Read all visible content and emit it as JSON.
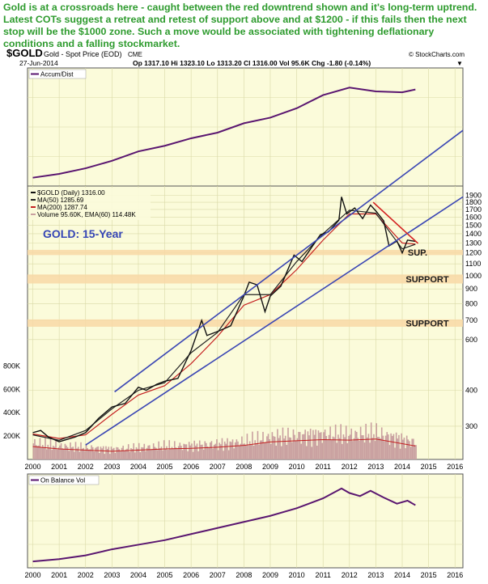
{
  "commentary": "Gold is at a crossroads here - caught between the red downtrend shown and it's long-term uptrend. Latest COTs suggest a retreat and retest of support above and at $1200 - if this fails then the next stop will be the $1000 zone. Such a move would be associated with tightening deflationary conditions and a falling stockmarket.",
  "header": {
    "symbol": "$GOLD",
    "description": "Gold - Spot Price (EOD)",
    "exchange": "CME",
    "copyright": "© StockCharts.com",
    "date": "27-Jun-2014",
    "ohlc": "Op 1317.10  Hi 1323.10  Lo 1313.20  Cl 1316.00  Vol 95.6K  Chg -1.80 (-0.14%)",
    "chg_arrow": "▼"
  },
  "colors": {
    "panel_bg": "#fbfbda",
    "grid": "#d9d9a6",
    "price": "#111111",
    "ma50": "#222222",
    "ma200": "#c42020",
    "channel": "#3a46b4",
    "downtrend": "#d32020",
    "volume": "#c9a0a0",
    "ema_volume": "#c42020",
    "indicator": "#5a1670",
    "zone": "#f8d8a6",
    "headline": "#2e9b2e"
  },
  "chart_data": [
    {
      "type": "line",
      "panel": "top",
      "legend": "Accum/Dist",
      "x": [
        2000.0,
        2001.0,
        2002.0,
        2003.0,
        2004.0,
        2005.0,
        2006.0,
        2007.0,
        2008.0,
        2009.0,
        2010.0,
        2011.0,
        2012.0,
        2013.0,
        2014.0,
        2014.5
      ],
      "y": [
        0.02,
        0.06,
        0.12,
        0.2,
        0.3,
        0.36,
        0.44,
        0.5,
        0.6,
        0.66,
        0.76,
        0.9,
        0.98,
        0.94,
        0.93,
        0.96
      ]
    },
    {
      "type": "line",
      "panel": "main",
      "scale": "log",
      "xlim": [
        1999.8,
        2016.3
      ],
      "ylim": [
        230,
        2050
      ],
      "x_ticks": [
        "2000",
        "2001",
        "2002",
        "2003",
        "2004",
        "2005",
        "2006",
        "2007",
        "2008",
        "2009",
        "2010",
        "2011",
        "2012",
        "2013",
        "2014",
        "2015",
        "2016"
      ],
      "y_ticks": [
        "1900",
        "1800",
        "1700",
        "1600",
        "1500",
        "1400",
        "1300",
        "1200",
        "1100",
        "1000",
        "900",
        "800",
        "700",
        "600",
        "400",
        "300"
      ],
      "volume_ticks": [
        "800K",
        "600K",
        "400K",
        "200K"
      ],
      "legend": [
        "$GOLD (Daily) 1316.00",
        "MA(50) 1285.69",
        "MA(200) 1287.74",
        "Volume 95.60K, EMA(60) 114.48K"
      ],
      "label": "GOLD: 15-Year",
      "series": [
        {
          "name": "$GOLD (Daily)",
          "x": [
            2000.0,
            2000.3,
            2000.6,
            2001.0,
            2001.3,
            2001.6,
            2002.0,
            2002.5,
            2003.0,
            2003.5,
            2004.0,
            2004.3,
            2004.7,
            2005.0,
            2005.5,
            2006.0,
            2006.4,
            2006.6,
            2007.0,
            2007.5,
            2008.0,
            2008.2,
            2008.5,
            2008.8,
            2009.0,
            2009.4,
            2009.9,
            2010.2,
            2010.5,
            2010.9,
            2011.2,
            2011.6,
            2011.7,
            2011.9,
            2012.2,
            2012.5,
            2012.8,
            2013.0,
            2013.3,
            2013.5,
            2013.8,
            2014.0,
            2014.2,
            2014.5
          ],
          "y": [
            285,
            290,
            275,
            265,
            270,
            275,
            285,
            320,
            350,
            360,
            410,
            400,
            420,
            430,
            440,
            550,
            700,
            620,
            640,
            670,
            850,
            950,
            930,
            750,
            850,
            920,
            1180,
            1120,
            1230,
            1390,
            1420,
            1560,
            1880,
            1640,
            1720,
            1580,
            1760,
            1680,
            1550,
            1270,
            1320,
            1200,
            1330,
            1316
          ]
        },
        {
          "name": "MA(50)",
          "x": [
            2000.0,
            2001.0,
            2002.0,
            2003.0,
            2004.0,
            2005.0,
            2006.0,
            2007.0,
            2008.0,
            2009.0,
            2010.0,
            2011.0,
            2012.0,
            2013.0,
            2014.0,
            2014.5
          ],
          "y": [
            280,
            268,
            290,
            345,
            400,
            425,
            540,
            635,
            860,
            860,
            1120,
            1400,
            1690,
            1650,
            1240,
            1286
          ]
        },
        {
          "name": "MA(200)",
          "x": [
            2000.0,
            2001.0,
            2002.0,
            2003.0,
            2004.0,
            2005.0,
            2006.0,
            2007.0,
            2008.0,
            2009.0,
            2010.0,
            2011.0,
            2012.0,
            2013.0,
            2014.0,
            2014.5
          ],
          "y": [
            282,
            272,
            280,
            330,
            385,
            415,
            495,
            615,
            790,
            860,
            1050,
            1330,
            1640,
            1640,
            1300,
            1288
          ]
        }
      ],
      "lines": [
        {
          "name": "upper channel",
          "x": [
            2003.1,
            2016.3
          ],
          "y": [
            395,
            3200
          ]
        },
        {
          "name": "lower channel",
          "x": [
            2002.0,
            2016.3
          ],
          "y": [
            258,
            1880
          ]
        },
        {
          "name": "red downtrend",
          "x": [
            2012.9,
            2014.6
          ],
          "y": [
            1800,
            1295
          ]
        }
      ],
      "zones": [
        {
          "label": "SUP.",
          "low": 1180,
          "high": 1230
        },
        {
          "label": "SUPPORT",
          "low": 940,
          "high": 1010
        },
        {
          "label": "SUPPORT",
          "low": 665,
          "high": 705
        }
      ],
      "volume": {
        "x": [
          2000.0,
          2001.0,
          2002.0,
          2003.0,
          2004.0,
          2005.0,
          2006.0,
          2007.0,
          2008.0,
          2009.0,
          2010.0,
          2011.0,
          2012.0,
          2013.0,
          2014.0,
          2014.5
        ],
        "y": [
          110,
          90,
          80,
          70,
          80,
          90,
          95,
          105,
          120,
          150,
          160,
          170,
          165,
          175,
          135,
          115
        ],
        "ylim": [
          0,
          900
        ]
      }
    },
    {
      "type": "line",
      "panel": "bottom",
      "legend": "On Balance Vol",
      "x": [
        2000.0,
        2001.0,
        2002.0,
        2003.0,
        2004.0,
        2005.0,
        2006.0,
        2007.0,
        2008.0,
        2009.0,
        2010.0,
        2011.0,
        2011.7,
        2012.0,
        2012.4,
        2012.8,
        2013.3,
        2013.8,
        2014.2,
        2014.5
      ],
      "y": [
        0.02,
        0.05,
        0.1,
        0.18,
        0.24,
        0.3,
        0.38,
        0.46,
        0.54,
        0.62,
        0.72,
        0.85,
        0.98,
        0.92,
        0.88,
        0.95,
        0.86,
        0.78,
        0.82,
        0.76
      ]
    }
  ]
}
